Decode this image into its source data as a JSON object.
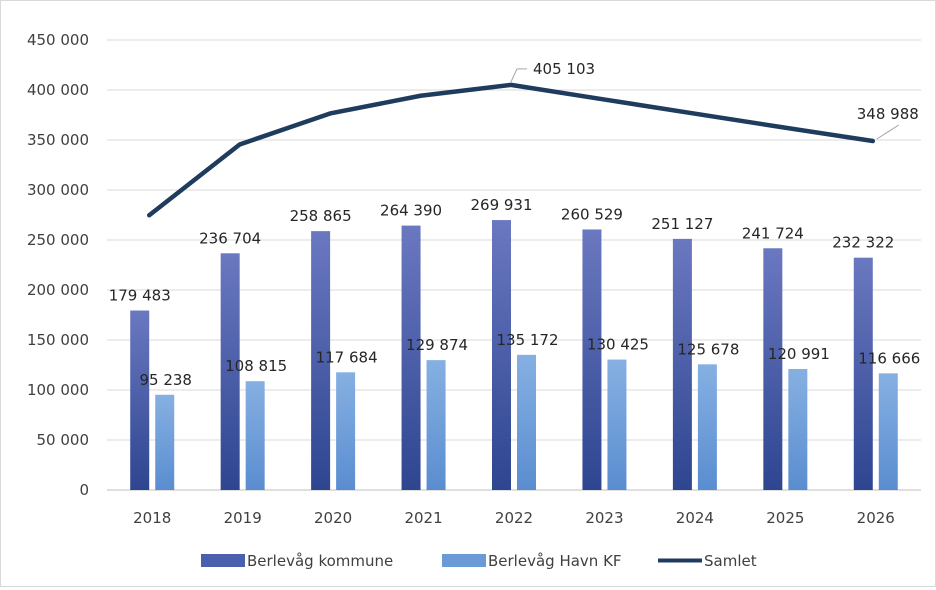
{
  "chart_data": {
    "type": "bar",
    "categories": [
      "2018",
      "2019",
      "2020",
      "2021",
      "2022",
      "2023",
      "2024",
      "2025",
      "2026"
    ],
    "series": [
      {
        "name": "Berlevåg kommune",
        "kind": "bar",
        "color": "#4a5fad",
        "values": [
          179483,
          236704,
          258865,
          264390,
          269931,
          260529,
          251127,
          241724,
          232322
        ],
        "labels": [
          "179 483",
          "236 704",
          "258 865",
          "264 390",
          "269 931",
          "260 529",
          "251 127",
          "241 724",
          "232 322"
        ]
      },
      {
        "name": "Berlevåg Havn KF",
        "kind": "bar",
        "color": "#6b9bd6",
        "values": [
          95238,
          108815,
          117684,
          129874,
          135172,
          130425,
          125678,
          120991,
          116666
        ],
        "labels": [
          "95 238",
          "108 815",
          "117 684",
          "129 874",
          "135 172",
          "130 425",
          "125 678",
          "120 991",
          "116 666"
        ]
      },
      {
        "name": "Samlet",
        "kind": "line",
        "color": "#1f3b5e",
        "values": [
          274721,
          345519,
          376549,
          394264,
          405103,
          390954,
          376805,
          362715,
          348988
        ],
        "labels": [
          "",
          "",
          "",
          "",
          "405 103",
          "",
          "",
          "",
          "348 988"
        ]
      }
    ],
    "ylim": [
      0,
      450000
    ],
    "yticks": [
      0,
      50000,
      100000,
      150000,
      200000,
      250000,
      300000,
      350000,
      400000,
      450000
    ],
    "ytick_labels": [
      "0",
      "50 000",
      "100 000",
      "150 000",
      "200 000",
      "250 000",
      "300 000",
      "350 000",
      "400 000",
      "450 000"
    ],
    "grid": true,
    "legend_position": "bottom",
    "title": "",
    "xlabel": "",
    "ylabel": ""
  }
}
